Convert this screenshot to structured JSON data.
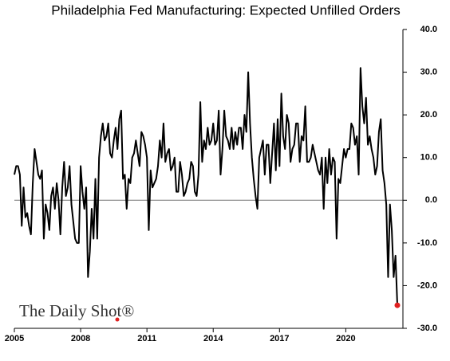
{
  "chart_data": {
    "type": "line",
    "title": "Philadelphia Fed Manufacturing: Expected Unfilled Orders",
    "watermark": "The Daily Shot®",
    "color": "#000000",
    "last_point_color": "#e02020",
    "zero_line": true,
    "categories": [
      "2005",
      null,
      null,
      null,
      null,
      null,
      null,
      null,
      null,
      null,
      null,
      null,
      null,
      null,
      null,
      null,
      null,
      null,
      null,
      null,
      null,
      null,
      null,
      null,
      null,
      null,
      null,
      null,
      null,
      null,
      null,
      null,
      null,
      null,
      null,
      null,
      "2008",
      null,
      null,
      null,
      null,
      null,
      null,
      null,
      null,
      null,
      null,
      null,
      null,
      null,
      null,
      null,
      null,
      null,
      null,
      null,
      null,
      null,
      null,
      null,
      null,
      null,
      null,
      null,
      null,
      null,
      null,
      null,
      null,
      null,
      null,
      null,
      "2011",
      null,
      null,
      null,
      null,
      null,
      null,
      null,
      null,
      null,
      null,
      null,
      null,
      null,
      null,
      null,
      null,
      null,
      null,
      null,
      null,
      null,
      null,
      null,
      null,
      null,
      null,
      null,
      null,
      null,
      null,
      null,
      null,
      null,
      null,
      null,
      "2014",
      null,
      null,
      null,
      null,
      null,
      null,
      null,
      null,
      null,
      null,
      null,
      null,
      null,
      null,
      null,
      null,
      null,
      null,
      null,
      null,
      null,
      null,
      null,
      null,
      null,
      null,
      null,
      null,
      null,
      null,
      null,
      null,
      null,
      null,
      null,
      "2017",
      null,
      null,
      null,
      null,
      null,
      null,
      null,
      null,
      null,
      null,
      null,
      null,
      null,
      null,
      null,
      null,
      null,
      null,
      null,
      null,
      null,
      null,
      null,
      null,
      null,
      null,
      null,
      null,
      null,
      null,
      null,
      null,
      null,
      null,
      null,
      "2020",
      null,
      null,
      null,
      null,
      null,
      null,
      null,
      null,
      null,
      null,
      null,
      null,
      null,
      null,
      null,
      null,
      null,
      null,
      null,
      null,
      null,
      null,
      null,
      null,
      null,
      null,
      null,
      null
    ],
    "values": [
      6,
      8,
      8,
      6,
      -6,
      3,
      -4,
      -3,
      -6,
      -8,
      4,
      12,
      9,
      6,
      5,
      7,
      -9,
      -1,
      -3,
      -7,
      1,
      3,
      -2,
      4,
      0,
      -8,
      3,
      9,
      1,
      3,
      8,
      -1,
      -5,
      -9,
      -10,
      -10,
      8,
      2,
      -2,
      3,
      -18,
      -12,
      -2,
      -9,
      5,
      -9,
      10,
      15,
      18,
      14,
      15,
      18,
      11,
      10,
      14,
      17,
      12,
      19,
      21,
      5,
      6,
      -2,
      5,
      4,
      10,
      11,
      14,
      11,
      8,
      16,
      15,
      13,
      10,
      -7,
      7,
      3,
      4,
      5,
      8,
      14,
      10,
      18,
      9,
      11,
      12,
      7,
      8,
      10,
      2,
      2,
      9,
      6,
      1,
      2,
      4,
      5,
      9,
      8,
      2,
      1,
      6,
      23,
      9,
      14,
      12,
      17,
      13,
      14,
      18,
      13,
      14,
      21,
      6,
      12,
      21,
      15,
      14,
      12,
      17,
      12,
      16,
      13,
      17,
      17,
      12,
      20,
      16,
      30,
      18,
      10,
      5,
      1,
      -2,
      10,
      12,
      14,
      6,
      13,
      13,
      4,
      11,
      18,
      7,
      19,
      8,
      25,
      15,
      12,
      20,
      18,
      9,
      12,
      13,
      18,
      18,
      9,
      15,
      14,
      22,
      9,
      9,
      10,
      13,
      11,
      9,
      7,
      6,
      10,
      -2,
      10,
      4,
      12,
      6,
      10,
      9,
      -9,
      5,
      4,
      8,
      12,
      10,
      12,
      12,
      18,
      17,
      13,
      15,
      6,
      31,
      22,
      18,
      24,
      13,
      15,
      12,
      10,
      6,
      8,
      16,
      19,
      7,
      4,
      -1,
      -18,
      -1,
      -7,
      -18,
      -13,
      -24.6
    ],
    "ylim": [
      -30,
      40
    ],
    "yticks": [
      {
        "value": -30,
        "label": "-30.0"
      },
      {
        "value": -20,
        "label": "-20.0"
      },
      {
        "value": -10,
        "label": "-10.0"
      },
      {
        "value": 0,
        "label": "0.0"
      },
      {
        "value": 10,
        "label": "10.0"
      },
      {
        "value": 20,
        "label": "20.0"
      },
      {
        "value": 30,
        "label": "30.0"
      },
      {
        "value": 40,
        "label": "40.0"
      }
    ]
  }
}
